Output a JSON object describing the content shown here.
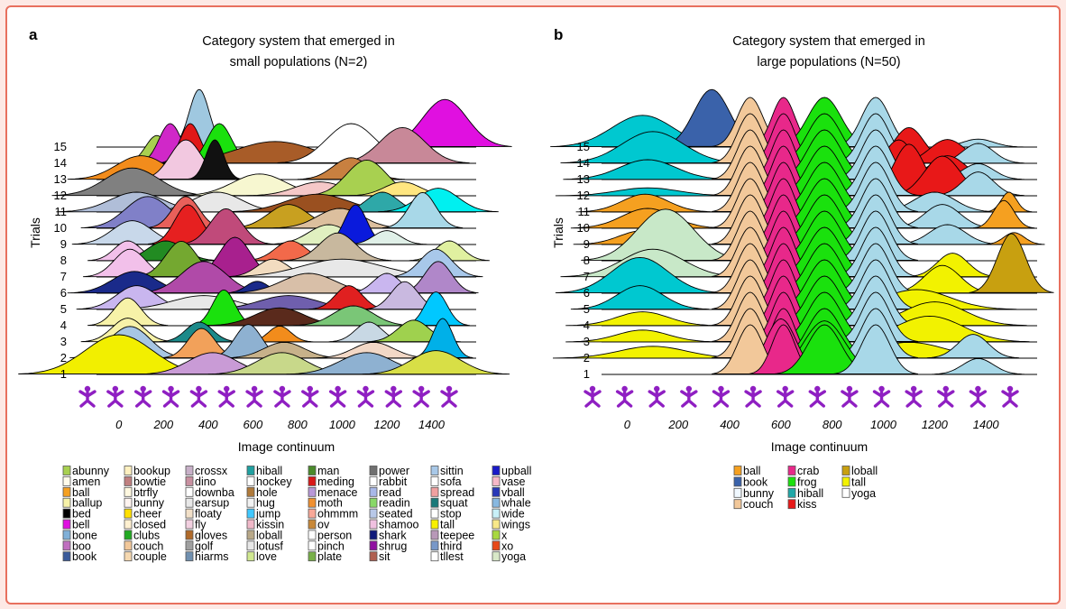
{
  "chart_data": [
    {
      "panel": "a",
      "type": "area",
      "title": "Category system that emerged in small populations (N=2)",
      "title_lines": [
        "Category system that emerged in",
        "small populations (N=2)"
      ],
      "xlabel": "Image continuum",
      "ylabel": "Trials",
      "xlim": [
        -100,
        1600
      ],
      "x_ticks": [
        0,
        200,
        400,
        600,
        800,
        1000,
        1200,
        1400
      ],
      "trials": [
        1,
        2,
        3,
        4,
        5,
        6,
        7,
        8,
        9,
        10,
        11,
        12,
        13,
        14,
        15
      ],
      "rows": [
        [
          [
            "#f2ef00",
            0,
            150,
            1.0
          ],
          [
            "#c99bd6",
            420,
            110,
            0.55
          ],
          [
            "#c8d88a",
            730,
            110,
            0.55
          ],
          [
            "#8eb1d1",
            1110,
            120,
            0.55
          ],
          [
            "#d8df46",
            1420,
            110,
            0.6
          ]
        ],
        [
          [
            "#a7c6e4",
            50,
            90,
            0.8
          ],
          [
            "#f2a15a",
            370,
            60,
            0.75
          ],
          [
            "#8eb1d1",
            580,
            60,
            0.85
          ],
          [
            "#c7b18a",
            740,
            90,
            0.4
          ],
          [
            "#f2d8c6",
            1140,
            90,
            0.4
          ],
          [
            "#00b0e8",
            1450,
            45,
            1.0
          ]
        ],
        [
          [
            "#f7f2a8",
            40,
            70,
            0.6
          ],
          [
            "#1c8a8a",
            360,
            60,
            0.5
          ],
          [
            "#f28c1c",
            720,
            50,
            0.4
          ],
          [
            "#c8d8e4",
            1120,
            60,
            0.5
          ],
          [
            "#9fd14e",
            1320,
            70,
            0.55
          ]
        ],
        [
          [
            "#f7f2a8",
            40,
            60,
            0.7
          ],
          [
            "#1ae10d",
            470,
            50,
            0.9
          ],
          [
            "#5a2a1c",
            720,
            110,
            0.45
          ],
          [
            "#7ac677",
            1050,
            90,
            0.5
          ],
          [
            "#00c8ff",
            1420,
            50,
            0.85
          ]
        ],
        [
          [
            "#c9b6ef",
            80,
            90,
            0.6
          ],
          [
            "#e8e8e8",
            380,
            140,
            0.35
          ],
          [
            "#6f5fad",
            760,
            130,
            0.35
          ],
          [
            "#e02020",
            1030,
            60,
            0.6
          ],
          [
            "#c9b9e0",
            1280,
            60,
            0.7
          ]
        ],
        [
          [
            "#1a2a8a",
            70,
            100,
            0.55
          ],
          [
            "#b04aa8",
            380,
            100,
            0.8
          ],
          [
            "#1a2a8a",
            620,
            50,
            0.3
          ],
          [
            "#d8bfa8",
            850,
            120,
            0.5
          ],
          [
            "#c9b6ef",
            1200,
            60,
            0.5
          ],
          [
            "#b087c9",
            1430,
            60,
            0.8
          ]
        ],
        [
          [
            "#f2c0ea",
            50,
            70,
            0.7
          ],
          [
            "#74a830",
            280,
            70,
            0.9
          ],
          [
            "#a8208e",
            520,
            70,
            1.0
          ],
          [
            "#f2dcc0",
            690,
            70,
            0.45
          ],
          [
            "#e8e8e8",
            1000,
            180,
            0.45
          ],
          [
            "#a8c8ea",
            1420,
            70,
            0.7
          ]
        ],
        [
          [
            "#f2c0ea",
            40,
            60,
            0.5
          ],
          [
            "#228b22",
            210,
            80,
            0.5
          ],
          [
            "#f2694a",
            770,
            70,
            0.5
          ],
          [
            "#c8b89e",
            980,
            80,
            0.7
          ],
          [
            "#f5a020",
            1450,
            40,
            0.25
          ],
          [
            "#e0f0a0",
            1480,
            60,
            0.5
          ]
        ],
        [
          [
            "#c8d8ea",
            60,
            90,
            0.6
          ],
          [
            "#e62020",
            310,
            60,
            1.0
          ],
          [
            "#c04a7a",
            480,
            70,
            0.9
          ],
          [
            "#e0f0c0",
            940,
            90,
            0.5
          ],
          [
            "#0a1adc",
            1060,
            50,
            1.0
          ],
          [
            "#e0f0e8",
            1200,
            60,
            0.35
          ]
        ],
        [
          [
            "#8080c8",
            130,
            100,
            0.8
          ],
          [
            "#e8605a",
            300,
            60,
            0.8
          ],
          [
            "#c8a020",
            760,
            90,
            0.6
          ],
          [
            "#dcbf9e",
            990,
            100,
            0.5
          ],
          [
            "#a8d8e8",
            1360,
            60,
            0.9
          ]
        ],
        [
          [
            "#b0bed8",
            80,
            120,
            0.5
          ],
          [
            "#e8e8e8",
            440,
            110,
            0.5
          ],
          [
            "#9a5020",
            890,
            140,
            0.45
          ],
          [
            "#2ea8a8",
            1180,
            70,
            0.5
          ],
          [
            "#00f0f0",
            1430,
            90,
            0.6
          ]
        ],
        [
          [
            "#808080",
            60,
            120,
            0.7
          ],
          [
            "#f7f7d0",
            630,
            120,
            0.55
          ],
          [
            "#f5c8c8",
            900,
            110,
            0.35
          ],
          [
            "#a8d050",
            1110,
            90,
            0.9
          ],
          [
            "#ffe680",
            1270,
            80,
            0.35
          ]
        ],
        [
          [
            "#f28c1c",
            100,
            110,
            0.6
          ],
          [
            "#f2c8e0",
            300,
            70,
            1.0
          ],
          [
            "#111111",
            430,
            40,
            1.0
          ],
          [
            "#c88040",
            1040,
            80,
            0.55
          ]
        ],
        [
          [
            "#a8d050",
            170,
            50,
            0.7
          ],
          [
            "#d028c8",
            230,
            50,
            1.0
          ],
          [
            "#e01818",
            320,
            45,
            1.0
          ],
          [
            "#1ae10d",
            450,
            55,
            1.0
          ],
          [
            "#a85c28",
            700,
            180,
            0.55
          ],
          [
            "#ffffff",
            1040,
            110,
            1.0
          ],
          [
            "#c88898",
            1270,
            100,
            0.9
          ]
        ],
        [
          [
            "#9fc8e0",
            360,
            45,
            1.45
          ],
          [
            "#e010e0",
            1460,
            100,
            1.2
          ]
        ]
      ],
      "legend": [
        [
          "abunny",
          "#a8d050"
        ],
        [
          "amen",
          "#fffbea"
        ],
        [
          "ball",
          "#f5a020"
        ],
        [
          "ballup",
          "#f7f2a8"
        ],
        [
          "bed",
          "#000000"
        ],
        [
          "bell",
          "#e010e0"
        ],
        [
          "bone",
          "#80b0d8"
        ],
        [
          "boo",
          "#c070c0"
        ],
        [
          "book",
          "#3a5a9a"
        ],
        [
          "bookup",
          "#fff0c0"
        ],
        [
          "bowtie",
          "#c08080"
        ],
        [
          "btrfly",
          "#fff8e0"
        ],
        [
          "bunny",
          "#fff4f0"
        ],
        [
          "cheer",
          "#ffe000"
        ],
        [
          "closed",
          "#fff0d0"
        ],
        [
          "clubs",
          "#22aa22"
        ],
        [
          "couch",
          "#f2c89a"
        ],
        [
          "couple",
          "#f5d8b0"
        ],
        [
          "crossx",
          "#c8b0c8"
        ],
        [
          "dino",
          "#c890a0"
        ],
        [
          "downba",
          "#ffffff"
        ],
        [
          "earsup",
          "#e8e8e8"
        ],
        [
          "floaty",
          "#f2e0c8"
        ],
        [
          "fly",
          "#f2d0e0"
        ],
        [
          "gloves",
          "#b06a2a"
        ],
        [
          "golf",
          "#a0a0a0"
        ],
        [
          "hiarms",
          "#7090b0"
        ],
        [
          "hiball",
          "#20a0a0"
        ],
        [
          "hockey",
          "#ffffff"
        ],
        [
          "hole",
          "#b07a3a"
        ],
        [
          "hug",
          "#f2f2f2"
        ],
        [
          "jump",
          "#40c8ff"
        ],
        [
          "kissin",
          "#f0b8c8"
        ],
        [
          "loball",
          "#b8a888"
        ],
        [
          "lotusf",
          "#e8e8e8"
        ],
        [
          "love",
          "#d0e890"
        ],
        [
          "man",
          "#4a8a2a"
        ],
        [
          "meding",
          "#d81818"
        ],
        [
          "menace",
          "#b898d8"
        ],
        [
          "moth",
          "#f09030"
        ],
        [
          "ohmmm",
          "#f8a898"
        ],
        [
          "ov",
          "#c88838"
        ],
        [
          "person",
          "#ffffff"
        ],
        [
          "pinch",
          "#ffffff"
        ],
        [
          "plate",
          "#78b048"
        ],
        [
          "power",
          "#707070"
        ],
        [
          "rabbit",
          "#ffffff"
        ],
        [
          "read",
          "#a8b8e8"
        ],
        [
          "readin",
          "#88d868"
        ],
        [
          "seated",
          "#b8c8e8"
        ],
        [
          "shamoo",
          "#f0c0e0"
        ],
        [
          "shark",
          "#101a7a"
        ],
        [
          "shrug",
          "#9010a0"
        ],
        [
          "sit",
          "#b06050"
        ],
        [
          "sittin",
          "#a8c8e8"
        ],
        [
          "sofa",
          "#ffffff"
        ],
        [
          "spread",
          "#f0a0a0"
        ],
        [
          "squat",
          "#1a7a7a"
        ],
        [
          "stop",
          "#ffffff"
        ],
        [
          "tall",
          "#f8f000"
        ],
        [
          "teepee",
          "#b898b8"
        ],
        [
          "third",
          "#7898c8"
        ],
        [
          "tllest",
          "#ffffff"
        ],
        [
          "upball",
          "#1a1ac8"
        ],
        [
          "vase",
          "#f8b8c8"
        ],
        [
          "vball",
          "#2838b8"
        ],
        [
          "whale",
          "#88b8e0"
        ],
        [
          "wide",
          "#c8f0f8"
        ],
        [
          "wings",
          "#f8e888"
        ],
        [
          "x",
          "#a8d840"
        ],
        [
          "xo",
          "#e84818"
        ],
        [
          "yoga",
          "#d8e8c8"
        ]
      ]
    },
    {
      "panel": "b",
      "type": "area",
      "title": "Category system that emerged in large populations (N=50)",
      "title_lines": [
        "Category system that emerged in",
        "large populations (N=50)"
      ],
      "xlabel": "Image continuum",
      "ylabel": "Trials",
      "xlim": [
        -100,
        1600
      ],
      "x_ticks": [
        0,
        200,
        400,
        600,
        800,
        1000,
        1200,
        1400
      ],
      "trials": [
        1,
        2,
        3,
        4,
        5,
        6,
        7,
        8,
        9,
        10,
        11,
        12,
        13,
        14,
        15
      ],
      "bands": [
        [
          "#f2c89a",
          480,
          50
        ],
        [
          "#e8288a",
          610,
          45
        ],
        [
          "#1ae10d",
          770,
          65
        ],
        [
          "#a8d8e8",
          970,
          55
        ]
      ],
      "rows": [
        [
          [
            "#1ae10d",
            770,
            80,
            1.35
          ],
          [
            "#e8288a",
            600,
            60,
            1.4
          ],
          [
            "#a8d8e8",
            1370,
            60,
            0.4
          ]
        ],
        [
          [
            "#f2f200",
            100,
            130,
            0.3
          ],
          [
            "#f2f200",
            1100,
            140,
            0.4
          ],
          [
            "#a8d8e8",
            1350,
            60,
            0.6
          ]
        ],
        [
          [
            "#f2f200",
            60,
            100,
            0.3
          ],
          [
            "#f2f200",
            1180,
            130,
            0.65
          ]
        ],
        [
          [
            "#f2f200",
            60,
            100,
            0.35
          ],
          [
            "#f2f200",
            1200,
            120,
            0.6
          ]
        ],
        [
          [
            "#00c8d0",
            50,
            90,
            0.6
          ],
          [
            "#f2f200",
            1130,
            130,
            0.5
          ]
        ],
        [
          [
            "#00c8d0",
            50,
            110,
            0.9
          ],
          [
            "#f2f200",
            1230,
            70,
            0.7
          ],
          [
            "#c8a010",
            1500,
            55,
            1.5
          ]
        ],
        [
          [
            "#c8e8c8",
            100,
            120,
            0.7
          ],
          [
            "#f2f200",
            1270,
            60,
            0.6
          ]
        ],
        [
          [
            "#c8e8c8",
            150,
            110,
            1.3
          ]
        ],
        [
          [
            "#f5a020",
            60,
            90,
            0.35
          ],
          [
            "#a8d8e8",
            1250,
            70,
            0.5
          ],
          [
            "#f5a020",
            1510,
            40,
            0.3
          ]
        ],
        [
          [
            "#f5a020",
            80,
            100,
            0.5
          ],
          [
            "#a8d8e8",
            1230,
            70,
            0.6
          ],
          [
            "#f5a020",
            1470,
            40,
            0.7
          ]
        ],
        [
          [
            "#f5a020",
            70,
            90,
            0.45
          ],
          [
            "#a8d8e8",
            1200,
            80,
            0.5
          ],
          [
            "#f5a020",
            1490,
            30,
            0.5
          ]
        ],
        [
          [
            "#00c8d0",
            80,
            120,
            0.2
          ],
          [
            "#e81818",
            1100,
            60,
            1.3
          ],
          [
            "#e81818",
            1230,
            70,
            1.0
          ],
          [
            "#a8d8e8",
            1370,
            60,
            0.6
          ]
        ],
        [
          [
            "#00c8d0",
            80,
            110,
            0.5
          ],
          [
            "#e81818",
            1060,
            60,
            1.0
          ],
          [
            "#e81818",
            1250,
            70,
            0.6
          ],
          [
            "#a8d8e8",
            1370,
            60,
            0.4
          ]
        ],
        [
          [
            "#00c8d0",
            100,
            120,
            0.8
          ],
          [
            "#e81818",
            1100,
            60,
            0.9
          ],
          [
            "#e81818",
            1250,
            70,
            0.6
          ],
          [
            "#a8d8e8",
            1370,
            60,
            0.5
          ]
        ],
        [
          [
            "#00c8d0",
            60,
            120,
            0.8
          ],
          [
            "#3a62aa",
            330,
            70,
            1.45
          ],
          [
            "#a8d8e8",
            1370,
            60,
            0.2
          ]
        ]
      ],
      "legend": [
        [
          "ball",
          "#f5a020"
        ],
        [
          "book",
          "#3a62aa"
        ],
        [
          "bunny",
          "#f0f8ff"
        ],
        [
          "couch",
          "#f2c89a"
        ],
        [
          "crab",
          "#e8288a"
        ],
        [
          "frog",
          "#1ae10d"
        ],
        [
          "hiball",
          "#20a8a8"
        ],
        [
          "kiss",
          "#e81818"
        ],
        [
          "loball",
          "#c8a010"
        ],
        [
          "tall",
          "#f2f200"
        ],
        [
          "yoga",
          "#ffffff"
        ]
      ]
    }
  ]
}
